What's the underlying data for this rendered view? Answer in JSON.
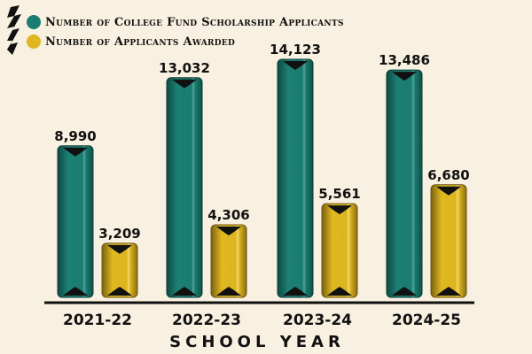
{
  "chart_data": {
    "type": "bar",
    "categories": [
      "2021-22",
      "2022-23",
      "2023-24",
      "2024-25"
    ],
    "series": [
      {
        "name": "Number of College Fund Scholarship Applicants",
        "values": [
          8990,
          13032,
          14123,
          13486
        ],
        "color": "#1a7d72"
      },
      {
        "name": "Number of Applicants Awarded",
        "values": [
          3209,
          4306,
          5561,
          6680
        ],
        "color": "#dfb520"
      }
    ],
    "data_labels": [
      [
        "8,990",
        "13,032",
        "14,123",
        "13,486"
      ],
      [
        "3,209",
        "4,306",
        "5,561",
        "6,680"
      ]
    ],
    "xlabel": "SCHOOL YEAR",
    "ylabel": "",
    "ylim": [
      0,
      14123
    ],
    "grid": false,
    "legend_position": "top-left"
  }
}
